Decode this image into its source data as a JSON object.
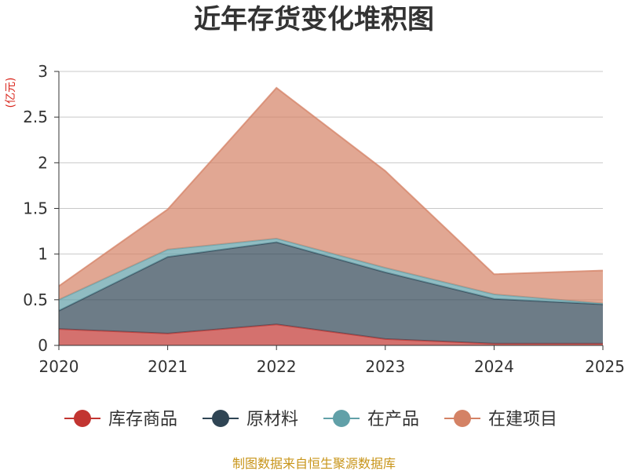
{
  "chart_data": {
    "type": "area",
    "title": "近年存货变化堆积图",
    "unit_label": "(亿元)",
    "categories": [
      "2020",
      "2021",
      "2022",
      "2023",
      "2024",
      "2025"
    ],
    "ylim": [
      0,
      3
    ],
    "y_ticks": [
      "0",
      "0.5",
      "1",
      "1.5",
      "2",
      "2.5",
      "3"
    ],
    "stacked": true,
    "grid": true,
    "legend_position": "bottom",
    "series": [
      {
        "name": "库存商品",
        "color": "#c23531",
        "values": [
          0.18,
          0.13,
          0.23,
          0.07,
          0.02,
          0.02
        ]
      },
      {
        "name": "原材料",
        "color": "#2f4554",
        "values": [
          0.2,
          0.84,
          0.9,
          0.73,
          0.49,
          0.43
        ]
      },
      {
        "name": "在产品",
        "color": "#61a0a8",
        "values": [
          0.12,
          0.08,
          0.04,
          0.05,
          0.05,
          0.01
        ]
      },
      {
        "name": "在建项目",
        "color": "#d48265",
        "values": [
          0.15,
          0.44,
          1.65,
          1.06,
          0.22,
          0.36
        ]
      }
    ]
  },
  "footer": {
    "source": "制图数据来自恒生聚源数据库"
  }
}
